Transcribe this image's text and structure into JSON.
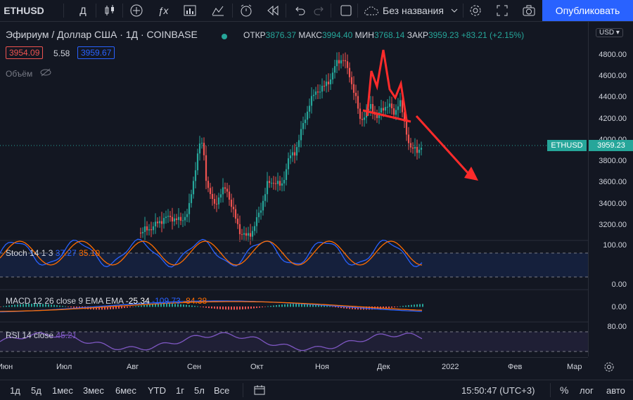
{
  "toolbar": {
    "symbol": "ETHUSD",
    "interval": "Д",
    "layout_name": "Без названия",
    "publish": "Опубликовать"
  },
  "legend": {
    "title": "Эфириум / Доллар США · 1Д · COINBASE",
    "open_label": "ОТКР",
    "open": "3876.37",
    "high_label": "МАКС",
    "high": "3994.40",
    "low_label": "МИН",
    "low": "3768.14",
    "close_label": "ЗАКР",
    "close": "3959.23",
    "change": "+83.21 (+2.15%)",
    "bid": "3954.09",
    "spread": "5.58",
    "ask": "3959.67",
    "volume": "Объём"
  },
  "indicators": {
    "stoch_name": "Stoch 14 1 3",
    "stoch_k": "37.27",
    "stoch_d": "35.10",
    "macd_name": "MACD 12 26 close 9 EMA EMA",
    "macd_hist": "-25.34",
    "macd_line": "-109.73",
    "macd_signal": "-84.38",
    "rsi_name": "RSI 14 close",
    "rsi_value": "45.21"
  },
  "price_axis": {
    "currency": "USD",
    "labels": [
      "4800.00",
      "4600.00",
      "4400.00",
      "4200.00",
      "4000.00",
      "3800.00",
      "3600.00",
      "3400.00",
      "3200.00"
    ],
    "symbol_tag": "ETHUSD",
    "last_price": "3959.23",
    "stoch_top": "100.00",
    "stoch_bottom": "0.00",
    "macd_zero": "0.00",
    "rsi_top": "80.00"
  },
  "time_axis": [
    "Июн",
    "Июл",
    "Авг",
    "Сен",
    "Окт",
    "Ноя",
    "Дек",
    "2022",
    "Фев",
    "Мар"
  ],
  "bottom": {
    "ranges": [
      "1д",
      "5д",
      "1мес",
      "3мес",
      "6мес",
      "YTD",
      "1г",
      "5л",
      "Все"
    ],
    "clock": "15:50:47 (UTC+3)",
    "percent": "%",
    "log": "лог",
    "auto": "авто"
  },
  "colors": {
    "up": "#26a69a",
    "down": "#ef5350",
    "accent": "#2962ff",
    "drawing": "#ff2b2b"
  }
}
